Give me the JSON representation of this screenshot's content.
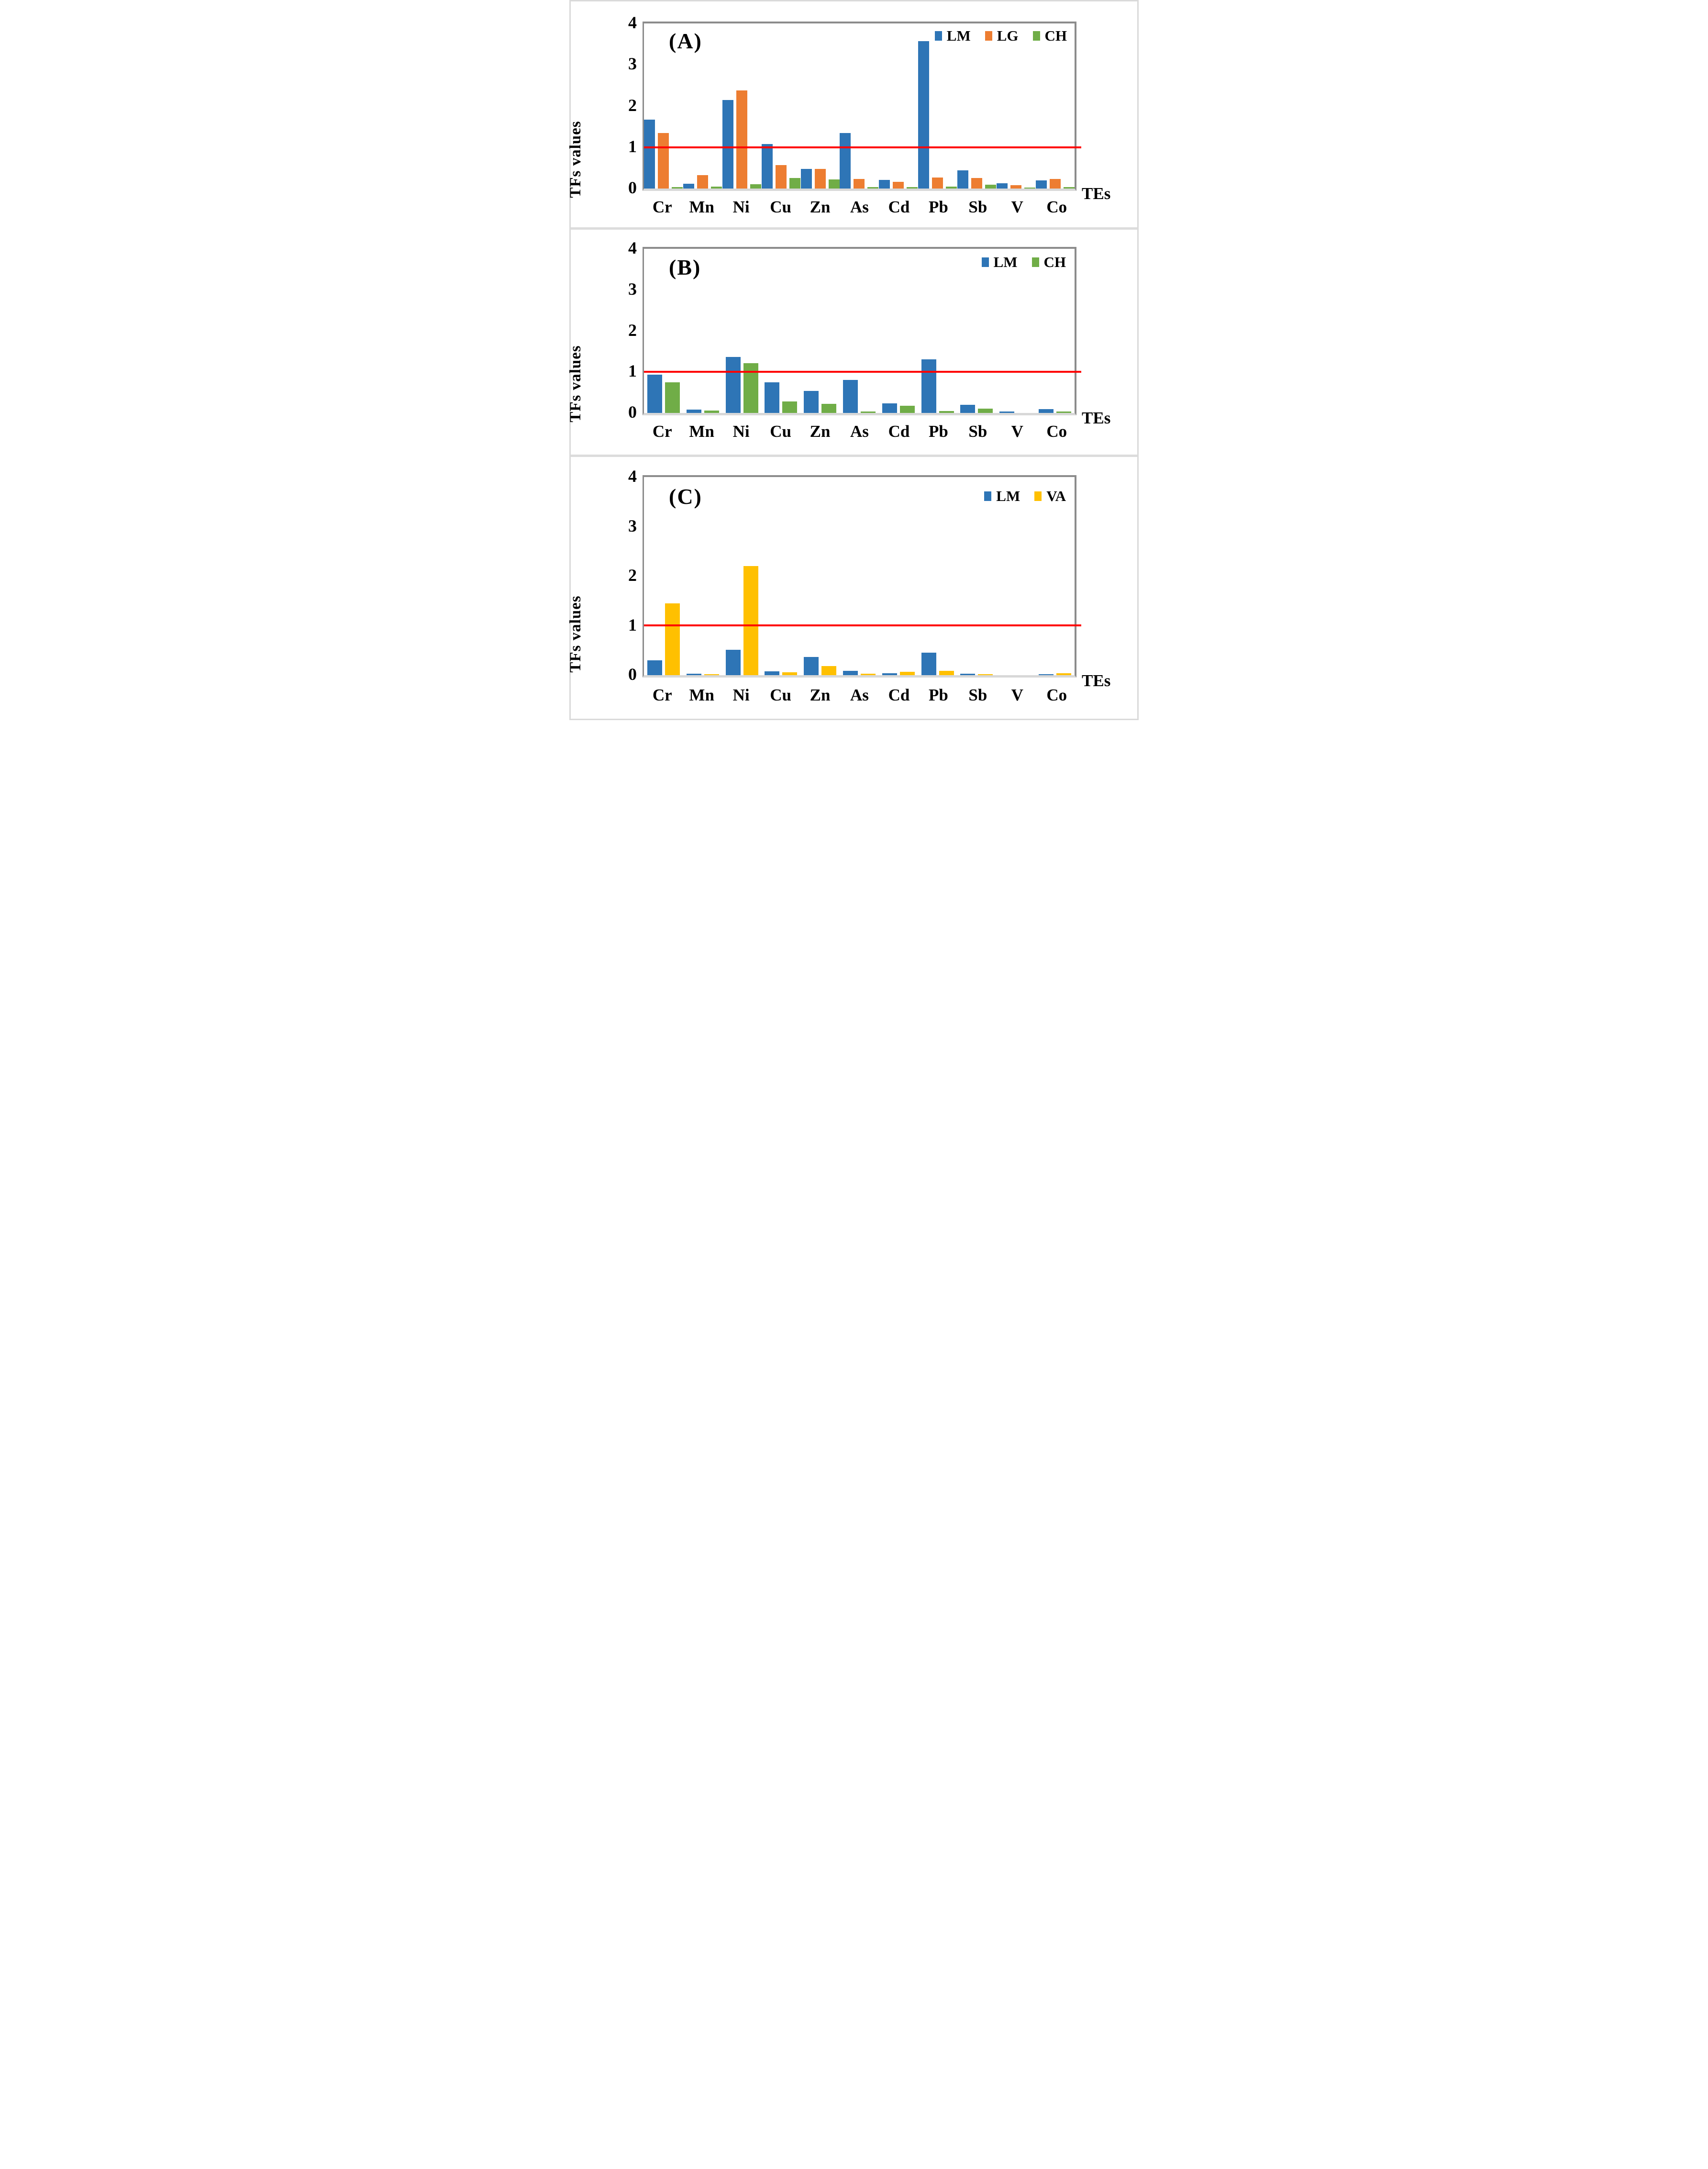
{
  "figure": {
    "type": "grouped-bar-figure",
    "panel_count": 3,
    "y_axis_title": "TFs values",
    "x_axis_title": "TEs",
    "reference_line_color": "#FF0000",
    "plot_border_color": "#8C8C8C",
    "baseline_color": "#D8D8D8"
  },
  "chart_data": [
    {
      "type": "bar",
      "label": "(A)",
      "ylabel": "TFs values",
      "xlabel": "TEs",
      "ylim": [
        0,
        4
      ],
      "yticks": [
        0,
        1,
        2,
        3,
        4
      ],
      "ref_line": 1,
      "grid": false,
      "legend_position": "top-right-inside",
      "categories": [
        "Cr",
        "Mn",
        "Ni",
        "Cu",
        "Zn",
        "As",
        "Cd",
        "Pb",
        "Sb",
        "V",
        "Co"
      ],
      "series": [
        {
          "name": "LM",
          "color": "#2E75B6",
          "values": [
            1.67,
            0.12,
            2.15,
            1.08,
            0.48,
            1.34,
            0.21,
            3.57,
            0.44,
            0.13,
            0.2
          ]
        },
        {
          "name": "LG",
          "color": "#ED7D31",
          "values": [
            1.35,
            0.33,
            2.38,
            0.57,
            0.47,
            0.23,
            0.16,
            0.27,
            0.26,
            0.08,
            0.23
          ]
        },
        {
          "name": "CH",
          "color": "#70AD47",
          "values": [
            0.04,
            0.05,
            0.1,
            0.25,
            0.22,
            0.03,
            0.04,
            0.05,
            0.09,
            0.02,
            0.03
          ]
        }
      ]
    },
    {
      "type": "bar",
      "label": "(B)",
      "ylabel": "TFs values",
      "xlabel": "TEs",
      "ylim": [
        0,
        4
      ],
      "yticks": [
        0,
        1,
        2,
        3,
        4
      ],
      "ref_line": 1,
      "grid": false,
      "legend_position": "top-right-inside",
      "categories": [
        "Cr",
        "Mn",
        "Ni",
        "Cu",
        "Zn",
        "As",
        "Cd",
        "Pb",
        "Sb",
        "V",
        "Co"
      ],
      "series": [
        {
          "name": "LM",
          "color": "#2E75B6",
          "values": [
            0.93,
            0.08,
            1.36,
            0.75,
            0.54,
            0.81,
            0.23,
            1.31,
            0.2,
            0.03,
            0.09
          ]
        },
        {
          "name": "CH",
          "color": "#70AD47",
          "values": [
            0.75,
            0.06,
            1.21,
            0.28,
            0.22,
            0.03,
            0.18,
            0.05,
            0.1,
            0.0,
            0.03
          ]
        }
      ]
    },
    {
      "type": "bar",
      "label": "(C)",
      "ylabel": "TFs values",
      "xlabel": "TEs",
      "ylim": [
        0,
        4
      ],
      "yticks": [
        0,
        1,
        2,
        3,
        4
      ],
      "ref_line": 1,
      "grid": false,
      "legend_position": "top-right-inside",
      "categories": [
        "Cr",
        "Mn",
        "Ni",
        "Cu",
        "Zn",
        "As",
        "Cd",
        "Pb",
        "Sb",
        "V",
        "Co"
      ],
      "series": [
        {
          "name": "LM",
          "color": "#2E75B6",
          "values": [
            0.3,
            0.03,
            0.51,
            0.08,
            0.37,
            0.09,
            0.04,
            0.45,
            0.03,
            0.0,
            0.02
          ]
        },
        {
          "name": "VA",
          "color": "#FFC000",
          "values": [
            1.45,
            0.02,
            2.2,
            0.06,
            0.18,
            0.03,
            0.07,
            0.09,
            0.02,
            0.0,
            0.04
          ]
        }
      ]
    }
  ]
}
